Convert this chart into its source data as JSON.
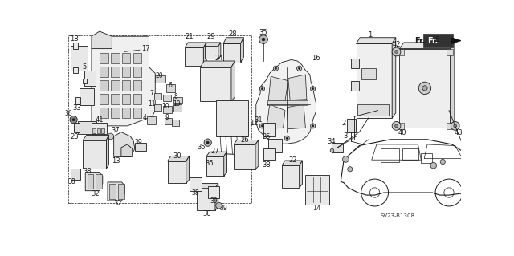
{
  "bg_color": "#ffffff",
  "fg_color": "#1a1a1a",
  "fig_width": 6.4,
  "fig_height": 3.19,
  "dpi": 100,
  "watermark": "SV23-B1308"
}
